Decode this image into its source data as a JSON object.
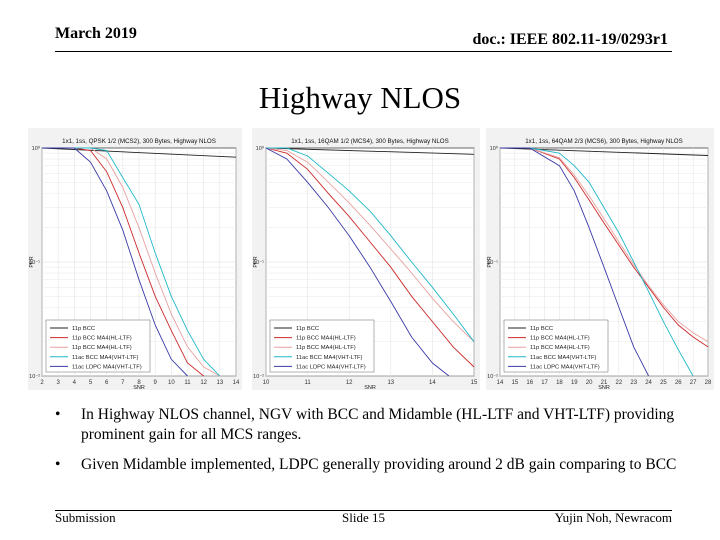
{
  "header": {
    "date": "March 2019",
    "doc": "doc.: IEEE 802.11-19/0293r1"
  },
  "title": "Highway NLOS",
  "charts": [
    {
      "title": "1x1, 1ss, QPSK 1/2 (MCS2), 300 Bytes, Highway NLOS",
      "xlabel": "SNR",
      "ylabel": "PER",
      "xticks": [
        "2",
        "3",
        "4",
        "5",
        "6",
        "7",
        "8",
        "9",
        "10",
        "11",
        "12",
        "13",
        "14"
      ],
      "yticks": [
        "10⁰",
        "10⁻¹",
        "10⁻²"
      ]
    },
    {
      "title": "1x1, 1ss, 16QAM 1/2 (MCS4), 300 Bytes, Highway NLOS",
      "xlabel": "SNR",
      "ylabel": "PER",
      "xticks": [
        "10",
        "11",
        "12",
        "13",
        "14",
        "15"
      ],
      "yticks": [
        "10⁰",
        "10⁻¹",
        "10⁻²"
      ]
    },
    {
      "title": "1x1, 1ss, 64QAM 2/3 (MCS6), 300 Bytes, Highway NLOS",
      "xlabel": "SNR",
      "ylabel": "PER",
      "xticks": [
        "14",
        "15",
        "16",
        "17",
        "18",
        "19",
        "20",
        "21",
        "22",
        "23",
        "24",
        "25",
        "26",
        "27",
        "28"
      ],
      "yticks": [
        "10⁰",
        "10⁻¹",
        "10⁻²"
      ]
    }
  ],
  "legend": [
    {
      "label": "11p BCC",
      "color": "#222222"
    },
    {
      "label": "11p BCC MA4(HL-LTF)",
      "color": "#cc2a2a"
    },
    {
      "label": "11p BCC MA4(HL-LTF)",
      "color": "#e8a0a0"
    },
    {
      "label": "11ac BCC MA4(VHT-LTF)",
      "color": "#1fb8c8"
    },
    {
      "label": "11ac LDPC MA4(VHT-LTF)",
      "color": "#3a3aa8"
    }
  ],
  "chart_data": [
    {
      "type": "line",
      "title": "1x1, 1ss, QPSK 1/2 (MCS2), 300 Bytes, Highway NLOS",
      "xlabel": "SNR",
      "ylabel": "PER",
      "yscale": "log",
      "xlim": [
        2,
        14
      ],
      "ylim": [
        0.01,
        1
      ],
      "series": [
        {
          "name": "11p BCC",
          "x": [
            2,
            14
          ],
          "y": [
            1,
            0.83
          ]
        },
        {
          "name": "11p BCC MA4(HL-LTF)",
          "x": [
            2,
            3,
            4,
            5,
            6,
            7,
            8,
            9,
            10,
            11,
            12
          ],
          "y": [
            1,
            1,
            1,
            0.95,
            0.62,
            0.3,
            0.12,
            0.05,
            0.025,
            0.013,
            0.01
          ]
        },
        {
          "name": "11p BCC MA4(HL-LTF)",
          "x": [
            2,
            3,
            4,
            5,
            6,
            7,
            8,
            9,
            10,
            11,
            12,
            13
          ],
          "y": [
            1,
            1,
            1,
            1,
            0.8,
            0.45,
            0.2,
            0.08,
            0.035,
            0.018,
            0.012,
            0.01
          ]
        },
        {
          "name": "11ac BCC MA4(VHT-LTF)",
          "x": [
            2,
            3,
            4,
            5,
            6,
            7,
            8,
            9,
            10,
            11,
            12,
            13
          ],
          "y": [
            1,
            1,
            1,
            1,
            0.95,
            0.55,
            0.32,
            0.12,
            0.05,
            0.025,
            0.014,
            0.01
          ]
        },
        {
          "name": "11ac LDPC MA4(VHT-LTF)",
          "x": [
            2,
            3,
            4,
            5,
            6,
            7,
            8,
            9,
            10,
            11
          ],
          "y": [
            1,
            1,
            1,
            0.75,
            0.42,
            0.19,
            0.07,
            0.028,
            0.014,
            0.01
          ]
        }
      ]
    },
    {
      "type": "line",
      "title": "1x1, 1ss, 16QAM 1/2 (MCS4), 300 Bytes, Highway NLOS",
      "xlabel": "SNR",
      "ylabel": "PER",
      "yscale": "log",
      "xlim": [
        10,
        15
      ],
      "ylim": [
        0.01,
        1
      ],
      "series": [
        {
          "name": "11p BCC",
          "x": [
            10,
            15
          ],
          "y": [
            1,
            0.88
          ]
        },
        {
          "name": "11p BCC MA4(HL-LTF)",
          "x": [
            10,
            10.5,
            11,
            11.5,
            12,
            12.5,
            13,
            13.5,
            14,
            14.5,
            15
          ],
          "y": [
            1,
            0.9,
            0.65,
            0.4,
            0.25,
            0.15,
            0.09,
            0.05,
            0.03,
            0.018,
            0.012
          ]
        },
        {
          "name": "11p BCC MA4(HL-LTF)",
          "x": [
            10,
            10.5,
            11,
            11.5,
            12,
            12.5,
            13,
            13.5,
            14,
            14.5,
            15
          ],
          "y": [
            1,
            0.95,
            0.75,
            0.5,
            0.33,
            0.21,
            0.13,
            0.08,
            0.048,
            0.03,
            0.02
          ]
        },
        {
          "name": "11ac BCC MA4(VHT-LTF)",
          "x": [
            10,
            10.5,
            11,
            11.5,
            12,
            12.5,
            13,
            13.5,
            14,
            14.5,
            15
          ],
          "y": [
            1,
            1,
            0.85,
            0.6,
            0.42,
            0.28,
            0.17,
            0.1,
            0.06,
            0.035,
            0.02
          ]
        },
        {
          "name": "11ac LDPC MA4(VHT-LTF)",
          "x": [
            10,
            10.5,
            11,
            11.5,
            12,
            12.5,
            13,
            13.5,
            14,
            14.4
          ],
          "y": [
            1,
            0.8,
            0.5,
            0.3,
            0.17,
            0.09,
            0.045,
            0.022,
            0.013,
            0.01
          ]
        }
      ]
    },
    {
      "type": "line",
      "title": "1x1, 1ss, 64QAM 2/3 (MCS6), 300 Bytes, Highway NLOS",
      "xlabel": "SNR",
      "ylabel": "PER",
      "yscale": "log",
      "xlim": [
        14,
        28
      ],
      "ylim": [
        0.01,
        1
      ],
      "series": [
        {
          "name": "11p BCC",
          "x": [
            14,
            28
          ],
          "y": [
            1,
            0.86
          ]
        },
        {
          "name": "11p BCC MA4(HL-LTF)",
          "x": [
            14,
            16,
            18,
            19,
            20,
            21,
            22,
            23,
            24,
            25,
            26,
            27,
            28
          ],
          "y": [
            1,
            1,
            0.8,
            0.55,
            0.35,
            0.22,
            0.14,
            0.09,
            0.06,
            0.04,
            0.028,
            0.022,
            0.018
          ]
        },
        {
          "name": "11p BCC MA4(HL-LTF)",
          "x": [
            14,
            16,
            18,
            19,
            20,
            21,
            22,
            23,
            24,
            25,
            26,
            27,
            28
          ],
          "y": [
            1,
            1,
            0.82,
            0.58,
            0.38,
            0.24,
            0.15,
            0.095,
            0.062,
            0.042,
            0.03,
            0.024,
            0.02
          ]
        },
        {
          "name": "11ac BCC MA4(VHT-LTF)",
          "x": [
            14,
            16,
            18,
            19,
            20,
            21,
            22,
            23,
            24,
            25,
            26,
            27
          ],
          "y": [
            1,
            1,
            0.9,
            0.7,
            0.5,
            0.3,
            0.18,
            0.1,
            0.055,
            0.03,
            0.017,
            0.01
          ]
        },
        {
          "name": "11ac LDPC MA4(VHT-LTF)",
          "x": [
            14,
            16,
            18,
            19,
            20,
            21,
            22,
            23,
            24
          ],
          "y": [
            1,
            1,
            0.7,
            0.42,
            0.2,
            0.09,
            0.04,
            0.018,
            0.01
          ]
        }
      ]
    }
  ],
  "bullets": [
    "In Highway NLOS channel, NGV with BCC and Midamble (HL-LTF and VHT-LTF) providing prominent gain for all MCS ranges.",
    "Given Midamble implemented, LDPC generally providing around 2 dB gain comparing to BCC"
  ],
  "bullet_marker": "•",
  "footer": {
    "left": "Submission",
    "center": "Slide 15",
    "right": "Yujin Noh, Newracom"
  }
}
